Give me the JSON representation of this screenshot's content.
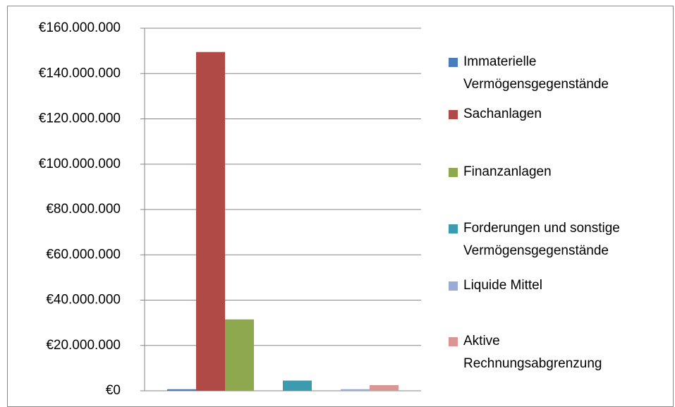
{
  "chart_data": {
    "type": "bar",
    "categories": [
      null
    ],
    "series": [
      {
        "name": "Immaterielle Vermögensgegenstände",
        "color": "#4a7ebb",
        "values": [
          700000
        ]
      },
      {
        "name": "Sachanlagen",
        "color": "#b04a47",
        "values": [
          149500000
        ]
      },
      {
        "name": "Finanzanlagen",
        "color": "#8ea84e",
        "values": [
          31500000
        ]
      },
      {
        "name": "Forderungen und sonstige Vermögensgegenstände",
        "color": "#3d9bb0",
        "values": [
          4500000
        ]
      },
      {
        "name": "Liquide Mittel",
        "color": "#9aabd6",
        "values": [
          700000
        ]
      },
      {
        "name": "Aktive Rechnungsabgrenzung",
        "color": "#d99694",
        "values": [
          2500000
        ]
      }
    ],
    "ylim": [
      0,
      160000000
    ],
    "yticks": [
      {
        "value": 0,
        "label": "€0"
      },
      {
        "value": 20000000,
        "label": "€20.000.000"
      },
      {
        "value": 40000000,
        "label": "€40.000.000"
      },
      {
        "value": 60000000,
        "label": "€60.000.000"
      },
      {
        "value": 80000000,
        "label": "€80.000.000"
      },
      {
        "value": 100000000,
        "label": "€100.000.000"
      },
      {
        "value": 120000000,
        "label": "€120.000.000"
      },
      {
        "value": 140000000,
        "label": "€140.000.000"
      },
      {
        "value": 160000000,
        "label": "€160.000.000"
      }
    ],
    "grid": true,
    "legend": "right"
  }
}
